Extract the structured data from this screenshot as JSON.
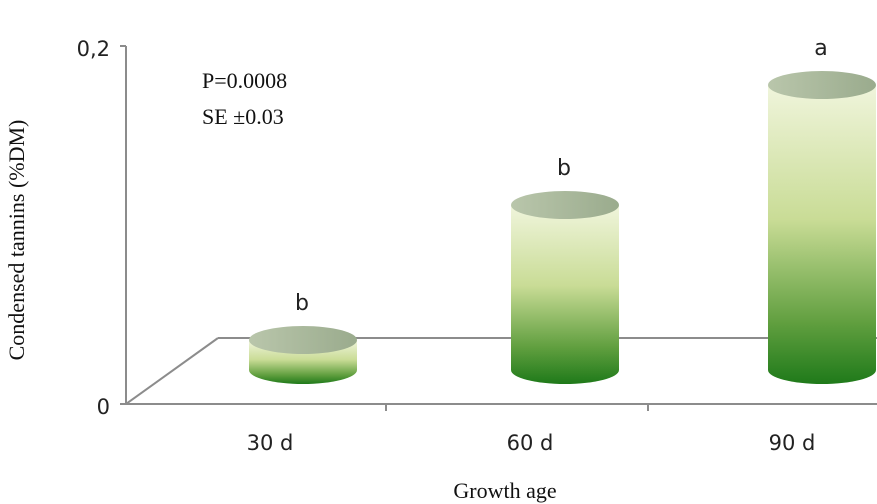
{
  "chart_data": {
    "type": "bar",
    "style": "3d-cylinder",
    "categories": [
      "30 d",
      "60 d",
      "90 d"
    ],
    "values": [
      0.02,
      0.11,
      0.19
    ],
    "significance_letters": [
      "b",
      "b",
      "a"
    ],
    "xlabel": "Growth age",
    "ylabel": "Condensed tannins (%DM)",
    "ylim": [
      0,
      0.2
    ],
    "yticks": [
      "0",
      "0,2"
    ],
    "annotations": [
      "P=0.0008",
      "SE ±0.03"
    ],
    "grid": false,
    "legend": "none",
    "bar_colors": {
      "top": "#a9b99a",
      "light": "#eef3d8",
      "dark": "#1f7a1a"
    }
  }
}
